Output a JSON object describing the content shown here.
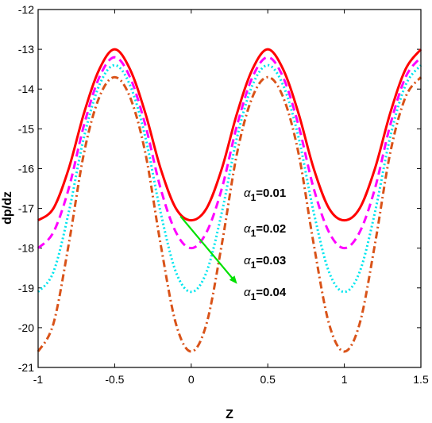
{
  "chart_data": {
    "type": "line",
    "xlabel": "Z",
    "ylabel": "dp/dz",
    "xlim": [
      -1,
      1.5
    ],
    "ylim": [
      -21,
      -12
    ],
    "xticks": [
      "-1",
      "-0.5",
      "0",
      "0.5",
      "1",
      "1.5"
    ],
    "yticks": [
      "-12",
      "-13",
      "-14",
      "-15",
      "-16",
      "-17",
      "-18",
      "-19",
      "-20",
      "-21"
    ],
    "grid": false,
    "x": [
      -1.0,
      -0.9,
      -0.8,
      -0.7,
      -0.6,
      -0.5,
      -0.4,
      -0.3,
      -0.2,
      -0.1,
      0.0,
      0.1,
      0.2,
      0.3,
      0.4,
      0.5,
      0.6,
      0.7,
      0.8,
      0.9,
      1.0,
      1.1,
      1.2,
      1.3,
      1.4,
      1.5
    ],
    "series": [
      {
        "name": "α1=0.01",
        "color": "#ff0000",
        "dash": "solid",
        "values": [
          -17.3,
          -17.0,
          -16.0,
          -14.6,
          -13.5,
          -13.0,
          -13.5,
          -14.6,
          -16.0,
          -17.0,
          -17.3,
          -17.0,
          -16.0,
          -14.6,
          -13.5,
          -13.0,
          -13.5,
          -14.6,
          -16.0,
          -17.0,
          -17.3,
          -17.0,
          -16.0,
          -14.6,
          -13.5,
          -13.0
        ]
      },
      {
        "name": "α1=0.02",
        "color": "#ff00ff",
        "dash": "dash",
        "values": [
          -18.0,
          -17.6,
          -16.5,
          -14.9,
          -13.7,
          -13.2,
          -13.7,
          -14.9,
          -16.5,
          -17.6,
          -18.0,
          -17.6,
          -16.5,
          -14.9,
          -13.7,
          -13.2,
          -13.7,
          -14.9,
          -16.5,
          -17.6,
          -18.0,
          -17.6,
          -16.5,
          -14.9,
          -13.7,
          -13.2
        ]
      },
      {
        "name": "α1=0.03",
        "color": "#00e5ee",
        "dash": "dot",
        "values": [
          -19.1,
          -18.6,
          -17.1,
          -15.2,
          -13.9,
          -13.4,
          -13.9,
          -15.2,
          -17.1,
          -18.6,
          -19.1,
          -18.6,
          -17.1,
          -15.2,
          -13.9,
          -13.4,
          -13.9,
          -15.2,
          -17.1,
          -18.6,
          -19.1,
          -18.6,
          -17.1,
          -15.2,
          -13.9,
          -13.4
        ]
      },
      {
        "name": "α1=0.04",
        "color": "#d95319",
        "dash": "dashdot",
        "values": [
          -20.6,
          -19.9,
          -17.9,
          -15.6,
          -14.2,
          -13.7,
          -14.2,
          -15.6,
          -17.9,
          -19.9,
          -20.6,
          -19.9,
          -17.9,
          -15.6,
          -14.2,
          -13.7,
          -14.2,
          -15.6,
          -17.9,
          -19.9,
          -20.6,
          -19.9,
          -17.9,
          -15.6,
          -14.2,
          -13.7
        ]
      }
    ],
    "annotations": [
      {
        "sym": "α",
        "sub": "1",
        "text": "=0.01"
      },
      {
        "sym": "α",
        "sub": "1",
        "text": "=0.02"
      },
      {
        "sym": "α",
        "sub": "1",
        "text": "=0.03"
      },
      {
        "sym": "α",
        "sub": "1",
        "text": "=0.04"
      }
    ],
    "arrow": {
      "color": "#00e000",
      "from": [
        -0.07,
        -17.2
      ],
      "to": [
        0.3,
        -18.9
      ]
    }
  }
}
